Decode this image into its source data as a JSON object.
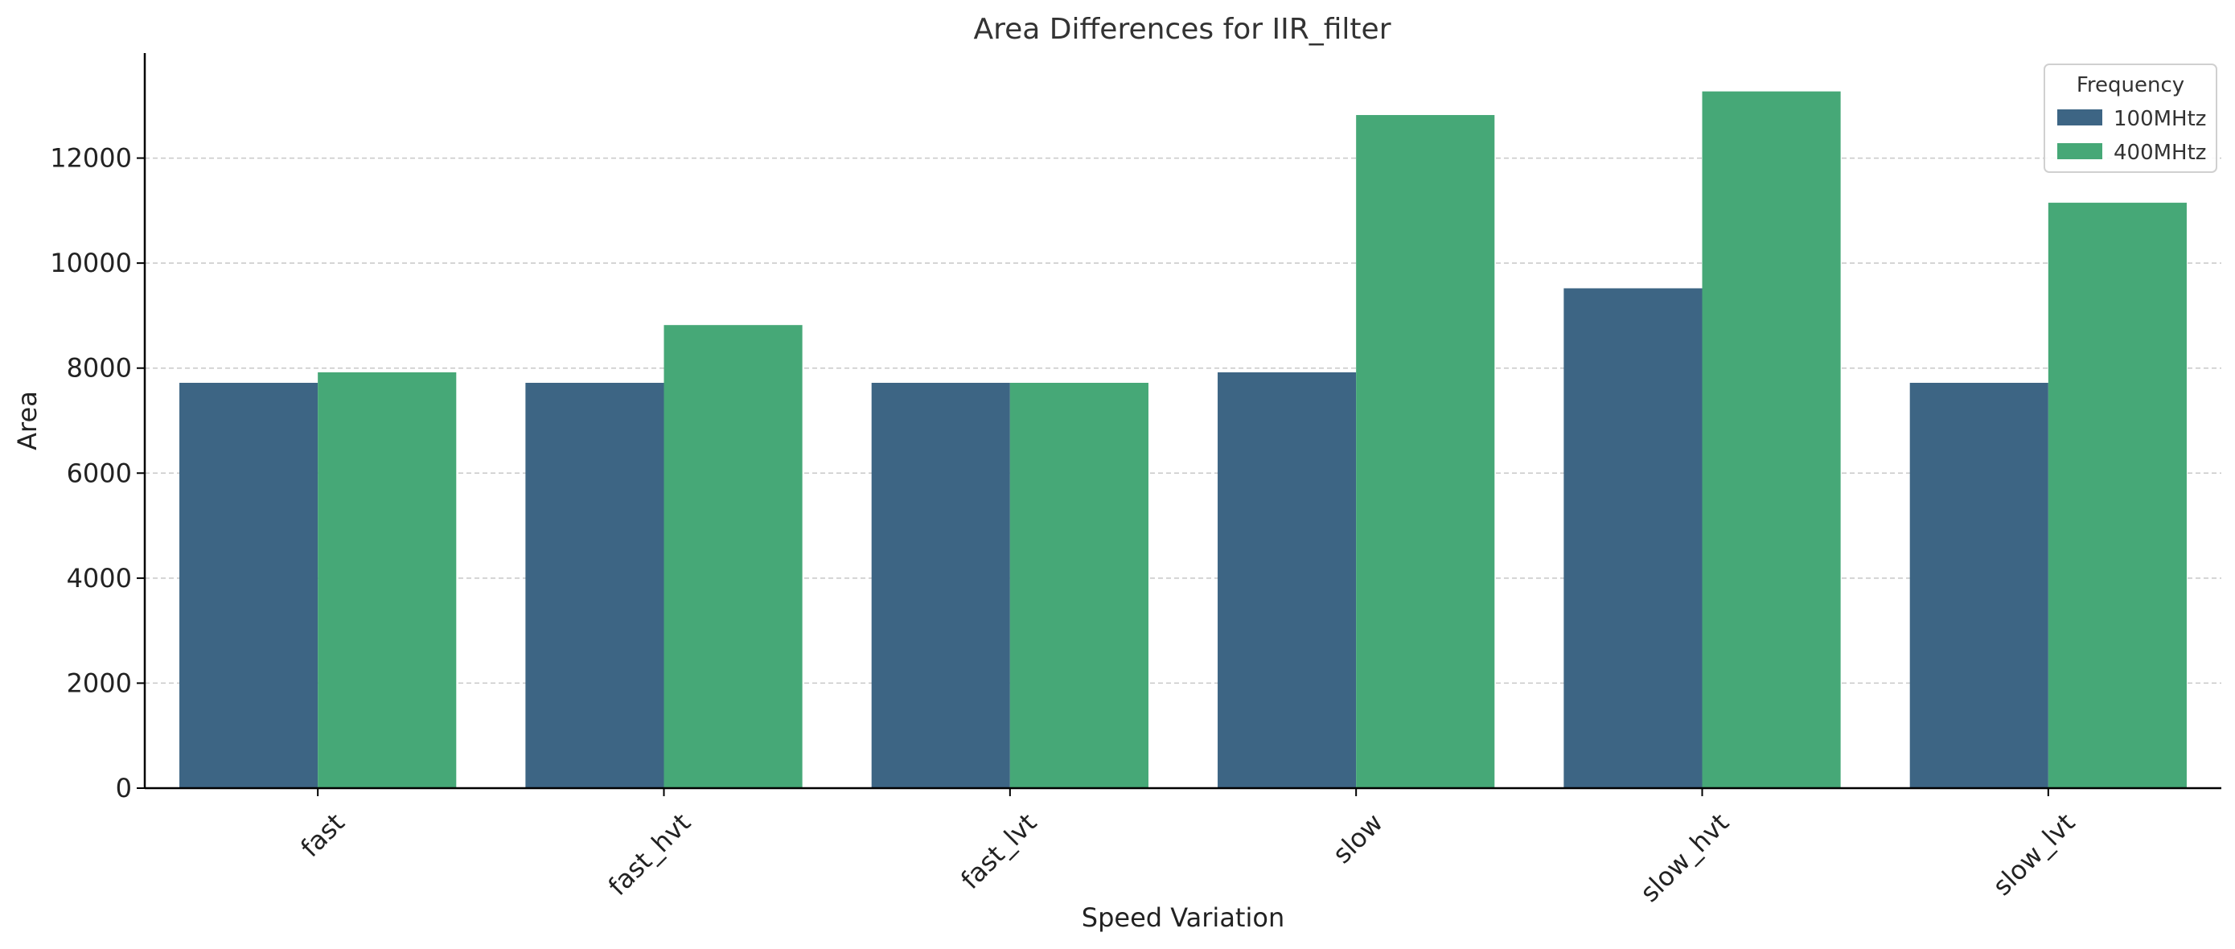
{
  "chart_data": {
    "type": "bar",
    "title": "Area Differences for IIR_filter",
    "xlabel": "Speed Variation",
    "ylabel": "Area",
    "categories": [
      "fast",
      "fast_hvt",
      "fast_lvt",
      "slow",
      "slow_hvt",
      "slow_lvt"
    ],
    "series": [
      {
        "name": "100MHtz",
        "color": "#3d6584",
        "values": [
          7720,
          7720,
          7720,
          7920,
          9520,
          7720
        ]
      },
      {
        "name": "400MHtz",
        "color": "#46a877",
        "values": [
          7920,
          8820,
          7720,
          12820,
          13270,
          11150
        ]
      }
    ],
    "ylim": [
      0,
      14000
    ],
    "yticks": [
      0,
      2000,
      4000,
      6000,
      8000,
      10000,
      12000
    ],
    "grid": true,
    "legend": {
      "title": "Frequency",
      "position": "top-right"
    }
  }
}
